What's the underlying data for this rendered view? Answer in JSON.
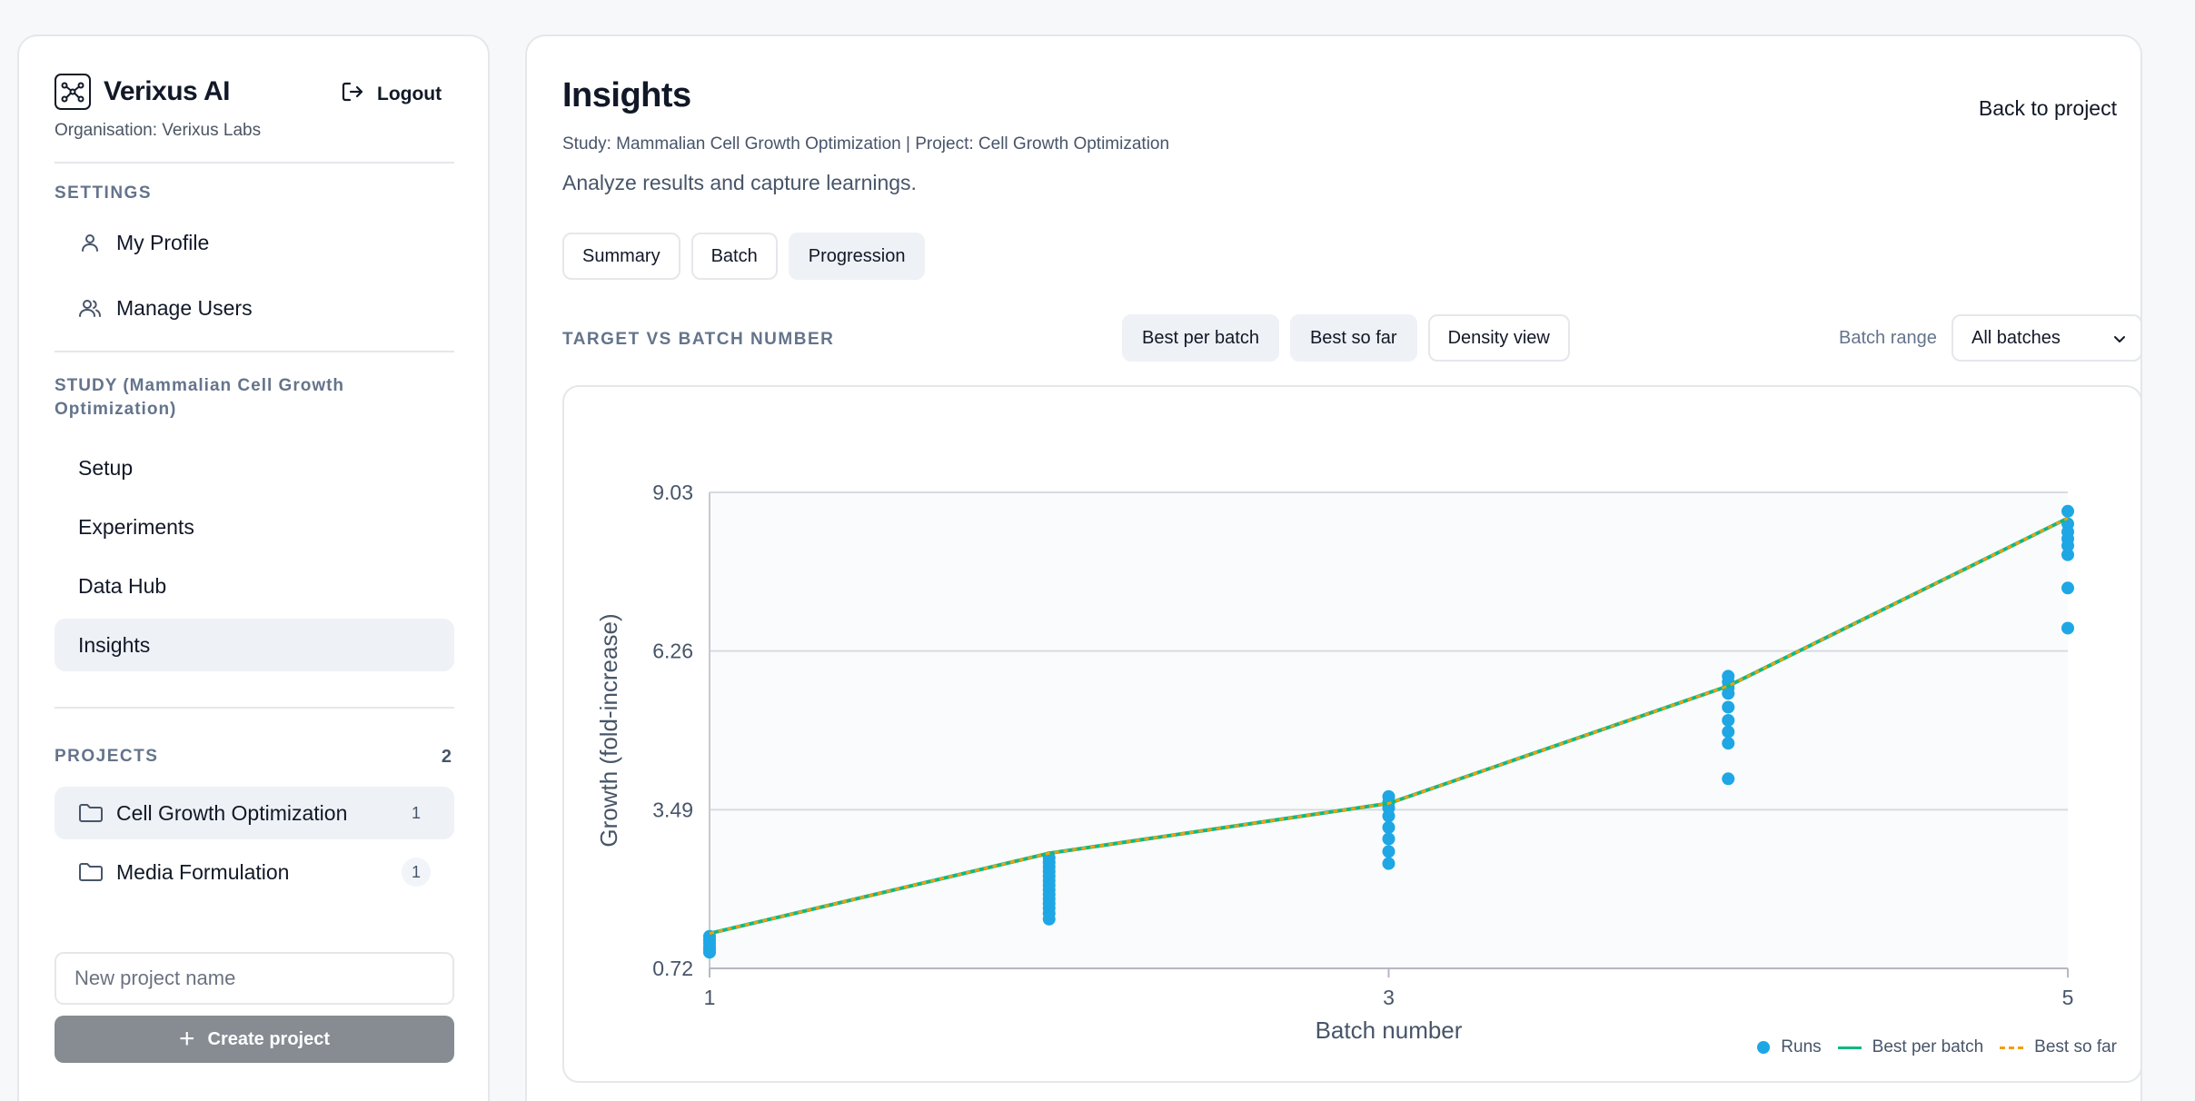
{
  "colors": {
    "runs": "#1ea7e4",
    "best_per_batch": "#10b981",
    "best_so_far": "#f59e0b",
    "active_bg": "#eef1f5",
    "create_button": "#878b92"
  },
  "sidebar": {
    "brand": "Verixus AI",
    "logout_label": "Logout",
    "organisation": "Organisation: Verixus Labs",
    "settings_title": "SETTINGS",
    "settings_items": [
      {
        "label": "My Profile",
        "icon": "user-icon"
      },
      {
        "label": "Manage Users",
        "icon": "users-icon"
      }
    ],
    "study_title": "STUDY (Mammalian Cell Growth Optimization)",
    "study_items": [
      {
        "label": "Setup"
      },
      {
        "label": "Experiments"
      },
      {
        "label": "Data Hub"
      },
      {
        "label": "Insights",
        "active": true
      }
    ],
    "projects_title": "PROJECTS",
    "projects_count": "2",
    "projects": [
      {
        "label": "Cell Growth Optimization",
        "count": "1",
        "active": true
      },
      {
        "label": "Media Formulation",
        "count": "1"
      }
    ],
    "new_project_placeholder": "New project name",
    "create_button_label": "Create project"
  },
  "main": {
    "title": "Insights",
    "back_label": "Back to project",
    "context_line": "Study: Mammalian Cell Growth Optimization | Project: Cell Growth Optimization",
    "subtitle": "Analyze results and capture learnings.",
    "tabs": [
      {
        "label": "Summary"
      },
      {
        "label": "Batch"
      },
      {
        "label": "Progression",
        "active": true
      }
    ],
    "chart_label": "TARGET VS BATCH NUMBER",
    "view_toggles": [
      {
        "label": "Best per batch",
        "active": true
      },
      {
        "label": "Best so far",
        "active": true
      },
      {
        "label": "Density view",
        "active": false
      }
    ],
    "batch_range_label": "Batch range",
    "batch_range_value": "All batches"
  },
  "chart_data": {
    "type": "scatter",
    "xlabel": "Batch number",
    "ylabel": "Growth (fold-increase)",
    "xlim": [
      1,
      5
    ],
    "ylim": [
      0.72,
      9.03
    ],
    "x_ticks": [
      "1",
      "3",
      "5"
    ],
    "y_ticks": [
      "9.03",
      "6.26",
      "3.49",
      "0.72"
    ],
    "grid": true,
    "legend_position": "bottom-right",
    "legend": [
      "Runs",
      "Best per batch",
      "Best so far"
    ],
    "series": [
      {
        "name": "Runs",
        "kind": "scatter",
        "points": [
          [
            1,
            1.28
          ],
          [
            1,
            1.22
          ],
          [
            1,
            1.16
          ],
          [
            1,
            1.1
          ],
          [
            1,
            1.05
          ],
          [
            1,
            1.0
          ],
          [
            2,
            2.65
          ],
          [
            2,
            2.57
          ],
          [
            2,
            2.49
          ],
          [
            2,
            2.41
          ],
          [
            2,
            2.33
          ],
          [
            2,
            2.25
          ],
          [
            2,
            2.17
          ],
          [
            2,
            2.09
          ],
          [
            2,
            2.01
          ],
          [
            2,
            1.93
          ],
          [
            2,
            1.85
          ],
          [
            2,
            1.77
          ],
          [
            2,
            1.68
          ],
          [
            2,
            1.58
          ],
          [
            3,
            3.72
          ],
          [
            3,
            3.62
          ],
          [
            3,
            3.52
          ],
          [
            3,
            3.38
          ],
          [
            3,
            3.18
          ],
          [
            3,
            2.98
          ],
          [
            3,
            2.76
          ],
          [
            3,
            2.55
          ],
          [
            4,
            5.82
          ],
          [
            4,
            5.72
          ],
          [
            4,
            5.62
          ],
          [
            4,
            5.52
          ],
          [
            4,
            5.28
          ],
          [
            4,
            5.05
          ],
          [
            4,
            4.85
          ],
          [
            4,
            4.65
          ],
          [
            4,
            4.03
          ],
          [
            5,
            8.7
          ],
          [
            5,
            8.48
          ],
          [
            5,
            8.34
          ],
          [
            5,
            8.22
          ],
          [
            5,
            8.1
          ],
          [
            5,
            7.94
          ],
          [
            5,
            7.36
          ],
          [
            5,
            6.66
          ]
        ]
      },
      {
        "name": "Best per batch",
        "kind": "line",
        "x": [
          1,
          2,
          3,
          4,
          5
        ],
        "y": [
          1.33,
          2.73,
          3.6,
          5.65,
          8.58
        ]
      },
      {
        "name": "Best so far",
        "kind": "dashed-line",
        "x": [
          1,
          2,
          3,
          4,
          5
        ],
        "y": [
          1.33,
          2.73,
          3.6,
          5.65,
          8.58
        ]
      }
    ]
  }
}
